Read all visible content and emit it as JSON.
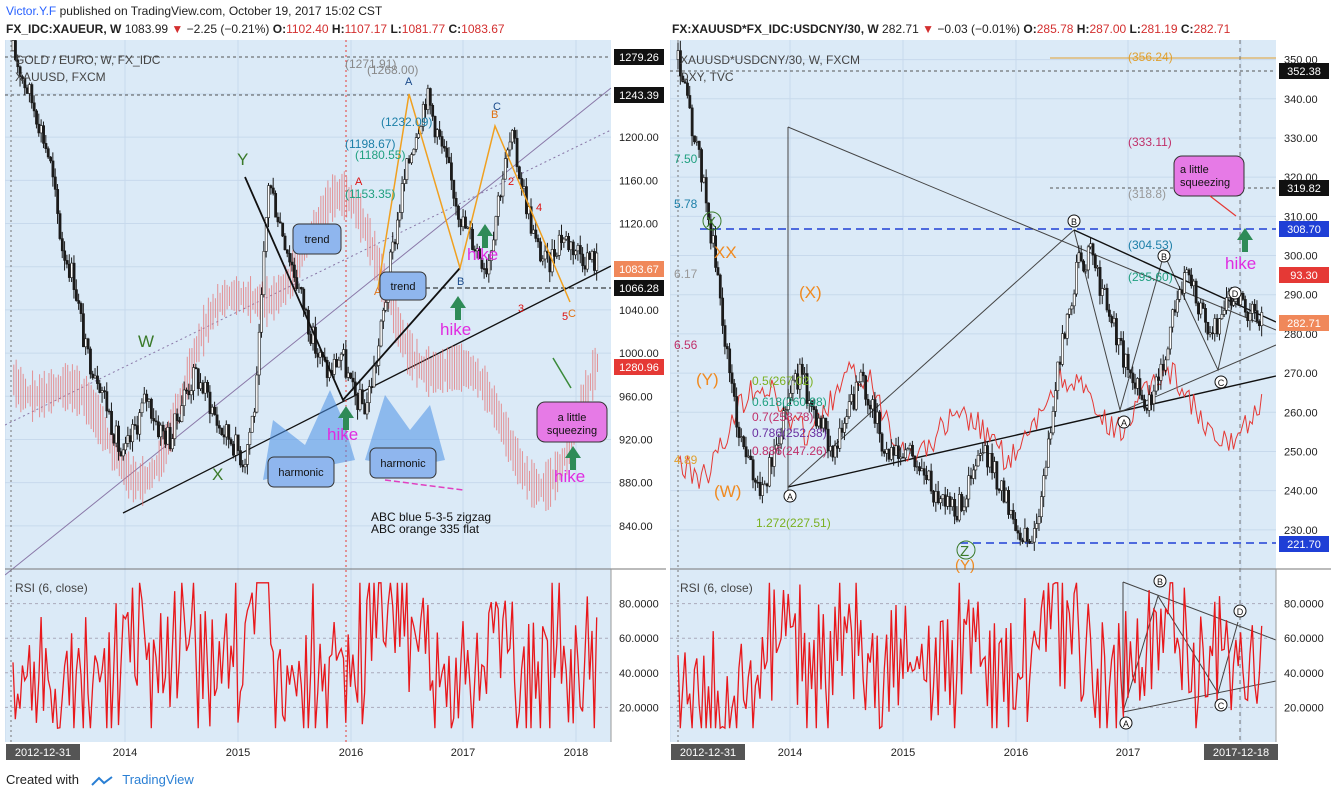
{
  "header": {
    "author": "Victor.Y.F",
    "published": "published on TradingView.com, October 19, 2017 15:02 CST"
  },
  "left_header": {
    "symbol": "FX_IDC:XAUEUR, W",
    "last": "1083.99",
    "change": "−2.25 (−0.21%)",
    "o": "1102.40",
    "h": "1107.17",
    "l": "1081.77",
    "c": "1083.67"
  },
  "right_header": {
    "symbol": "FX:XAUUSD*FX_IDC:USDCNY/30, W",
    "last": "282.71",
    "change": "−0.03 (−0.01%)",
    "o": "285.78",
    "h": "287.00",
    "l": "281.19",
    "c": "282.71"
  },
  "footer": {
    "created_with": "Created with",
    "brand": "TradingView"
  },
  "colors": {
    "panel_bg": "#dbeaf7",
    "rsi": "#e8181c",
    "up": "#2b2b2b",
    "overlay": "#e53935",
    "blue_dash": "#1f3fd6"
  },
  "chart_data": [
    {
      "type": "candlestick",
      "title": "GOLD / EURO, W, FX_IDC",
      "overlay_name": "XAUUSD, FXCM",
      "x_ticks": [
        "2012-12-31",
        "2014",
        "2015",
        "2016",
        "2017",
        "2018"
      ],
      "y_ticks": [
        840,
        880,
        920,
        960,
        1000,
        1040,
        1080,
        1120,
        1160,
        1200,
        1240
      ],
      "ylim": [
        800,
        1290
      ],
      "price_labels": {
        "high": "1279.26",
        "level": "1243.39",
        "last": "1083.67",
        "support": "1066.28",
        "overlay": "1280.96"
      },
      "fib_labels": [
        "(1271.91)",
        "(1268.00)",
        "(1232.09)",
        "(1198.67)",
        "(1180.55)",
        "(1153.35)"
      ],
      "wave_labels": [
        "Y",
        "X",
        "W",
        "A",
        "B",
        "C",
        "A",
        "B",
        "C",
        "2",
        "3",
        "4",
        "5",
        "5"
      ],
      "annotations": {
        "trend1": "trend",
        "trend2": "trend",
        "harmonic1": "harmonic",
        "harmonic2": "harmonic",
        "hike": "hike",
        "squeeze": "a little squeezing",
        "note1": "ABC blue 5-3-5 zigzag",
        "note2": "ABC orange 335 flat"
      },
      "series": [
        {
          "name": "XAUEUR",
          "values": [
            1280,
            1250,
            1220,
            1180,
            1100,
            1070,
            1000,
            980,
            940,
            900,
            930,
            960,
            930,
            920,
            960,
            980,
            960,
            930,
            920,
            900,
            960,
            1160,
            1120,
            1080,
            1040,
            1000,
            980,
            1000,
            960,
            950,
            1000,
            1080,
            1150,
            1200,
            1240,
            1200,
            1160,
            1120,
            1100,
            1080,
            1150,
            1200,
            1150,
            1100,
            1080,
            1110,
            1100,
            1090,
            1084
          ]
        }
      ],
      "rsi": {
        "name": "RSI (6, close)",
        "ticks": [
          "80.0000",
          "60.0000",
          "40.0000",
          "20.0000"
        ],
        "ylim": [
          0,
          100
        ]
      }
    },
    {
      "type": "candlestick",
      "title": "XAUUSD*USDCNY/30, W, FXCM",
      "overlay_name": "DXY, TVC",
      "x_ticks": [
        "2012-12-31",
        "2014",
        "2015",
        "2016",
        "2017",
        "2017-12-18"
      ],
      "y_ticks": [
        230,
        240,
        250,
        260,
        270,
        280,
        290,
        300,
        310,
        320,
        330,
        340,
        350
      ],
      "ylim": [
        220,
        355
      ],
      "price_labels": {
        "high": "352.38",
        "level": "319.82",
        "blue_level": "308.70",
        "overlay": "93.30",
        "last": "282.71",
        "low": "221.70"
      },
      "fib_labels": [
        "(356.24)",
        "(333.11)",
        "(318.8)",
        "(304.53)",
        "(295.60)",
        "0.5(267.02)",
        "0.618(260.98)",
        "0.7(258.78)",
        "0.786(252.38)",
        "0.886(247.26)",
        "1.272(227.51)",
        "7.50",
        "5.78",
        "6.17",
        "6.56",
        "4.89"
      ],
      "wave_labels": [
        "X",
        "XX",
        "(X)",
        "(Y)",
        "(W)",
        "Z",
        "(Y)",
        "A",
        "B",
        "B",
        "C",
        "D"
      ],
      "annotations": {
        "hike": "hike",
        "squeeze": "a little squeezing"
      },
      "series": [
        {
          "name": "XAUUSD*USDCNY/30",
          "values": [
            350,
            335,
            320,
            300,
            275,
            255,
            245,
            240,
            250,
            265,
            270,
            262,
            255,
            250,
            260,
            268,
            262,
            250,
            248,
            250,
            245,
            240,
            238,
            235,
            242,
            250,
            245,
            238,
            230,
            226,
            240,
            265,
            285,
            298,
            300,
            290,
            280,
            270,
            265,
            262,
            275,
            290,
            295,
            285,
            280,
            288,
            290,
            285,
            283
          ]
        }
      ],
      "rsi": {
        "name": "RSI (6, close)",
        "ticks": [
          "80.0000",
          "60.0000",
          "40.0000",
          "20.0000"
        ],
        "ylim": [
          0,
          100
        ]
      }
    }
  ]
}
